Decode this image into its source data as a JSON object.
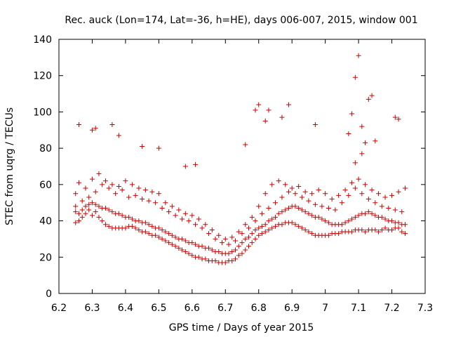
{
  "chart_data": {
    "type": "scatter",
    "title": "Rec. auck (Lon=174, Lat=-36, h=HE), days 006-007, 2015, window 001",
    "xlabel": "GPS time / Days of year 2015",
    "ylabel": "STEC from uqrg / TECUs",
    "xlim": [
      6.2,
      7.3
    ],
    "ylim": [
      0,
      140
    ],
    "xticks": [
      "6.2",
      "6.3",
      "6.4",
      "6.5",
      "6.6",
      "6.7",
      "6.8",
      "6.9",
      "7",
      "7.1",
      "7.2",
      "7.3"
    ],
    "yticks": [
      "0",
      "20",
      "40",
      "60",
      "80",
      "100",
      "120",
      "140"
    ],
    "grid": false,
    "marker": "+",
    "color": "#cc0000",
    "series": [
      {
        "name": "STEC",
        "x": [
          6.25,
          6.25,
          6.26,
          6.27,
          6.28,
          6.29,
          6.3,
          6.31,
          6.32,
          6.33,
          6.34,
          6.35,
          6.36,
          6.37,
          6.38,
          6.39,
          6.4,
          6.41,
          6.42,
          6.43,
          6.44,
          6.45,
          6.46,
          6.47,
          6.48,
          6.49,
          6.5,
          6.51,
          6.52,
          6.53,
          6.54,
          6.55,
          6.56,
          6.57,
          6.58,
          6.59,
          6.6,
          6.61,
          6.62,
          6.63,
          6.64,
          6.65,
          6.66,
          6.67,
          6.68,
          6.69,
          6.7,
          6.71,
          6.72,
          6.73,
          6.74,
          6.75,
          6.76,
          6.77,
          6.78,
          6.79,
          6.8,
          6.81,
          6.82,
          6.83,
          6.84,
          6.85,
          6.86,
          6.87,
          6.88,
          6.89,
          6.9,
          6.91,
          6.92,
          6.93,
          6.94,
          6.95,
          6.96,
          6.97,
          6.98,
          6.99,
          7.0,
          7.01,
          7.02,
          7.03,
          7.04,
          7.05,
          7.06,
          7.07,
          7.08,
          7.09,
          7.1,
          7.11,
          7.12,
          7.13,
          7.14,
          7.15,
          7.16,
          7.17,
          7.18,
          7.19,
          7.2,
          7.21,
          7.22,
          7.23,
          7.24,
          6.25,
          6.26,
          6.27,
          6.28,
          6.29,
          6.3,
          6.31,
          6.32,
          6.33,
          6.34,
          6.35,
          6.36,
          6.37,
          6.38,
          6.39,
          6.4,
          6.41,
          6.42,
          6.43,
          6.44,
          6.45,
          6.46,
          6.47,
          6.48,
          6.49,
          6.5,
          6.51,
          6.52,
          6.53,
          6.54,
          6.55,
          6.56,
          6.57,
          6.58,
          6.59,
          6.6,
          6.61,
          6.62,
          6.63,
          6.64,
          6.65,
          6.66,
          6.67,
          6.68,
          6.69,
          6.7,
          6.71,
          6.72,
          6.73,
          6.74,
          6.75,
          6.76,
          6.77,
          6.78,
          6.79,
          6.8,
          6.81,
          6.82,
          6.83,
          6.84,
          6.85,
          6.86,
          6.87,
          6.88,
          6.89,
          6.9,
          6.91,
          6.92,
          6.93,
          6.94,
          6.95,
          6.96,
          6.97,
          6.98,
          6.99,
          7.0,
          7.01,
          7.02,
          7.03,
          7.04,
          7.05,
          7.06,
          7.07,
          7.08,
          7.09,
          7.1,
          7.11,
          7.12,
          7.13,
          7.14,
          7.15,
          7.16,
          7.17,
          7.18,
          7.19,
          7.2,
          7.21,
          7.22,
          7.23,
          7.24,
          6.25,
          6.27,
          6.29,
          6.31,
          6.33,
          6.35,
          6.37,
          6.39,
          6.41,
          6.43,
          6.45,
          6.47,
          6.49,
          6.51,
          6.53,
          6.55,
          6.57,
          6.59,
          6.61,
          6.63,
          6.65,
          6.67,
          6.69,
          6.71,
          6.73,
          6.75,
          6.77,
          6.79,
          6.81,
          6.83,
          6.85,
          6.87,
          6.89,
          6.91,
          6.93,
          6.95,
          6.97,
          6.99,
          7.01,
          7.03,
          7.05,
          7.07,
          7.09,
          7.11,
          7.13,
          7.15,
          7.17,
          7.19,
          7.21,
          7.23,
          6.26,
          6.28,
          6.3,
          6.32,
          6.34,
          6.36,
          6.38,
          6.4,
          6.42,
          6.44,
          6.46,
          6.48,
          6.5,
          6.52,
          6.54,
          6.56,
          6.58,
          6.6,
          6.62,
          6.64,
          6.66,
          6.68,
          6.7,
          6.72,
          6.74,
          6.76,
          6.78,
          6.8,
          6.82,
          6.84,
          6.86,
          6.88,
          6.9,
          6.92,
          6.94,
          6.96,
          6.98,
          7.0,
          7.02,
          7.04,
          7.06,
          7.08,
          7.1,
          7.12,
          7.14,
          7.16,
          7.18,
          7.2,
          7.22,
          7.24,
          6.26,
          6.3,
          6.31,
          6.36,
          6.38,
          6.45,
          6.5,
          6.58,
          6.61,
          6.76,
          6.79,
          6.8,
          6.82,
          6.83,
          6.87,
          6.89,
          6.97,
          7.07,
          7.08,
          7.09,
          7.1,
          7.11,
          7.12,
          7.13,
          7.14,
          7.21,
          7.22,
          7.09,
          7.11,
          7.15
        ],
        "y": [
          39,
          48,
          40,
          42,
          44,
          46,
          43,
          45,
          42,
          40,
          38,
          37,
          36,
          36,
          36,
          36,
          36,
          37,
          37,
          36,
          35,
          34,
          34,
          33,
          32,
          32,
          31,
          30,
          29,
          28,
          27,
          26,
          25,
          24,
          23,
          22,
          21,
          20,
          20,
          19,
          19,
          18,
          18,
          18,
          17,
          17,
          17,
          18,
          18,
          19,
          21,
          22,
          24,
          26,
          28,
          30,
          32,
          33,
          34,
          35,
          36,
          37,
          38,
          38,
          39,
          39,
          39,
          38,
          37,
          36,
          35,
          34,
          33,
          32,
          32,
          32,
          32,
          32,
          33,
          33,
          33,
          34,
          34,
          34,
          34,
          35,
          35,
          35,
          34,
          35,
          35,
          35,
          34,
          35,
          36,
          35,
          35,
          36,
          36,
          34,
          33,
          45,
          44,
          46,
          48,
          49,
          50,
          49,
          48,
          47,
          47,
          46,
          45,
          44,
          44,
          43,
          42,
          42,
          41,
          40,
          40,
          39,
          39,
          38,
          37,
          36,
          36,
          35,
          34,
          33,
          32,
          31,
          30,
          30,
          29,
          28,
          28,
          27,
          26,
          26,
          25,
          25,
          24,
          23,
          23,
          22,
          22,
          22,
          23,
          24,
          26,
          28,
          30,
          31,
          33,
          35,
          36,
          37,
          38,
          40,
          41,
          42,
          44,
          45,
          46,
          47,
          48,
          48,
          47,
          46,
          45,
          44,
          43,
          42,
          42,
          41,
          40,
          39,
          38,
          38,
          38,
          38,
          39,
          40,
          41,
          42,
          43,
          44,
          44,
          45,
          44,
          43,
          42,
          42,
          41,
          40,
          40,
          39,
          39,
          38,
          38,
          55,
          51,
          53,
          56,
          60,
          58,
          55,
          57,
          53,
          54,
          52,
          51,
          50,
          47,
          45,
          43,
          41,
          40,
          38,
          36,
          33,
          30,
          28,
          27,
          29,
          33,
          36,
          40,
          44,
          47,
          50,
          53,
          56,
          55,
          53,
          51,
          49,
          48,
          47,
          46,
          50,
          54,
          58,
          55,
          52,
          50,
          48,
          47,
          46,
          45,
          61,
          58,
          63,
          66,
          62,
          60,
          59,
          62,
          60,
          58,
          57,
          56,
          55,
          50,
          48,
          46,
          44,
          43,
          41,
          38,
          35,
          32,
          30,
          31,
          34,
          38,
          42,
          48,
          55,
          60,
          62,
          60,
          58,
          59,
          56,
          55,
          57,
          55,
          52,
          54,
          57,
          61,
          63,
          60,
          57,
          55,
          53,
          54,
          56,
          58,
          93,
          90,
          91,
          93,
          87,
          81,
          80,
          70,
          71,
          82,
          101,
          104,
          95,
          101,
          97,
          104,
          93,
          88,
          99,
          119,
          131,
          92,
          83,
          107,
          109,
          97,
          96,
          72,
          77,
          84
        ]
      }
    ]
  }
}
